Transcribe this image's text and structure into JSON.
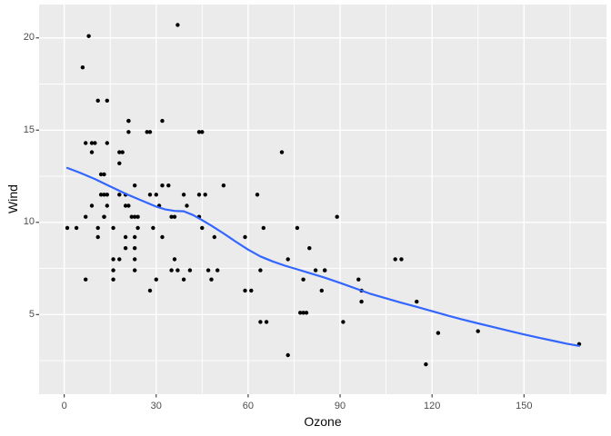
{
  "chart_data": {
    "type": "scatter",
    "title": "",
    "xlabel": "Ozone",
    "ylabel": "Wind",
    "xlim": [
      -8.2,
      176.9
    ],
    "ylim": [
      0.68,
      21.81
    ],
    "x_ticks": [
      0,
      30,
      60,
      90,
      120,
      150
    ],
    "x_tick_labels": [
      "0",
      "30",
      "60",
      "90",
      "120",
      "150"
    ],
    "x_minor_ticks": [
      15,
      45,
      75,
      105,
      135,
      165
    ],
    "y_ticks": [
      5,
      10,
      15,
      20
    ],
    "y_tick_labels": [
      "5",
      "10",
      "15",
      "20"
    ],
    "y_minor_ticks": [
      2.5,
      7.5,
      12.5,
      17.5
    ],
    "grid": {
      "major": true,
      "minor": true
    },
    "legend": "none",
    "series": [
      {
        "name": "points",
        "geom": "point"
      },
      {
        "name": "smooth",
        "geom": "loess-line"
      }
    ],
    "points": [
      [
        41,
        7.4
      ],
      [
        36,
        8
      ],
      [
        12,
        12.6
      ],
      [
        18,
        11.5
      ],
      [
        28,
        14.9
      ],
      [
        23,
        8.6
      ],
      [
        19,
        13.8
      ],
      [
        8,
        20.1
      ],
      [
        7,
        6.9
      ],
      [
        16,
        9.7
      ],
      [
        11,
        9.2
      ],
      [
        14,
        10.9
      ],
      [
        18,
        13.2
      ],
      [
        14,
        11.5
      ],
      [
        34,
        12
      ],
      [
        6,
        18.4
      ],
      [
        30,
        11.5
      ],
      [
        11,
        9.7
      ],
      [
        1,
        9.7
      ],
      [
        11,
        16.6
      ],
      [
        4,
        9.7
      ],
      [
        32,
        12
      ],
      [
        23,
        12
      ],
      [
        45,
        14.9
      ],
      [
        115,
        5.7
      ],
      [
        37,
        7.4
      ],
      [
        29,
        9.7
      ],
      [
        71,
        13.8
      ],
      [
        39,
        11.5
      ],
      [
        23,
        8
      ],
      [
        21,
        14.9
      ],
      [
        37,
        20.7
      ],
      [
        20,
        9.2
      ],
      [
        12,
        11.5
      ],
      [
        13,
        10.3
      ],
      [
        135,
        4.1
      ],
      [
        49,
        9.2
      ],
      [
        32,
        9.2
      ],
      [
        64,
        4.6
      ],
      [
        40,
        10.9
      ],
      [
        77,
        5.1
      ],
      [
        97,
        6.3
      ],
      [
        97,
        5.7
      ],
      [
        85,
        7.4
      ],
      [
        10,
        14.3
      ],
      [
        27,
        14.9
      ],
      [
        7,
        14.3
      ],
      [
        48,
        6.9
      ],
      [
        35,
        10.3
      ],
      [
        61,
        6.3
      ],
      [
        79,
        5.1
      ],
      [
        63,
        11.5
      ],
      [
        16,
        6.9
      ],
      [
        80,
        8.6
      ],
      [
        108,
        8
      ],
      [
        20,
        8.6
      ],
      [
        52,
        12
      ],
      [
        82,
        7.4
      ],
      [
        50,
        7.4
      ],
      [
        64,
        7.4
      ],
      [
        59,
        9.2
      ],
      [
        39,
        6.9
      ],
      [
        9,
        13.8
      ],
      [
        16,
        7.4
      ],
      [
        78,
        6.9
      ],
      [
        35,
        7.4
      ],
      [
        66,
        4.6
      ],
      [
        122,
        4
      ],
      [
        89,
        10.3
      ],
      [
        110,
        8
      ],
      [
        44,
        11.5
      ],
      [
        28,
        11.5
      ],
      [
        65,
        9.7
      ],
      [
        22,
        10.3
      ],
      [
        59,
        6.3
      ],
      [
        23,
        7.4
      ],
      [
        31,
        10.9
      ],
      [
        44,
        10.3
      ],
      [
        21,
        15.5
      ],
      [
        9,
        14.3
      ],
      [
        45,
        9.7
      ],
      [
        168,
        3.4
      ],
      [
        73,
        8
      ],
      [
        76,
        9.7
      ],
      [
        118,
        2.3
      ],
      [
        84,
        6.3
      ],
      [
        85,
        7.4
      ],
      [
        96,
        6.9
      ],
      [
        78,
        5.1
      ],
      [
        73,
        2.8
      ],
      [
        91,
        4.6
      ],
      [
        47,
        7.4
      ],
      [
        32,
        15.5
      ],
      [
        20,
        10.9
      ],
      [
        23,
        10.3
      ],
      [
        21,
        10.9
      ],
      [
        24,
        9.7
      ],
      [
        44,
        14.9
      ],
      [
        21,
        15.5
      ],
      [
        28,
        6.3
      ],
      [
        9,
        10.9
      ],
      [
        13,
        11.5
      ],
      [
        46,
        11.5
      ],
      [
        18,
        13.8
      ],
      [
        13,
        10.3
      ],
      [
        24,
        10.3
      ],
      [
        16,
        8
      ],
      [
        13,
        12.6
      ],
      [
        23,
        9.2
      ],
      [
        36,
        10.3
      ],
      [
        7,
        10.3
      ],
      [
        14,
        16.6
      ],
      [
        30,
        6.9
      ],
      [
        14,
        14.3
      ],
      [
        18,
        8
      ],
      [
        20,
        11.5
      ]
    ],
    "smooth_line": [
      [
        1,
        12.95
      ],
      [
        5,
        12.7
      ],
      [
        10,
        12.35
      ],
      [
        15,
        11.95
      ],
      [
        20,
        11.55
      ],
      [
        25,
        11.2
      ],
      [
        30,
        10.85
      ],
      [
        33,
        10.7
      ],
      [
        36,
        10.62
      ],
      [
        39,
        10.6
      ],
      [
        42,
        10.4
      ],
      [
        45,
        10.12
      ],
      [
        48,
        9.82
      ],
      [
        52,
        9.4
      ],
      [
        56,
        8.95
      ],
      [
        60,
        8.52
      ],
      [
        64,
        8.15
      ],
      [
        68,
        7.88
      ],
      [
        72,
        7.65
      ],
      [
        76,
        7.45
      ],
      [
        80,
        7.25
      ],
      [
        85,
        7.0
      ],
      [
        90,
        6.72
      ],
      [
        95,
        6.42
      ],
      [
        100,
        6.12
      ],
      [
        105,
        5.88
      ],
      [
        110,
        5.64
      ],
      [
        115,
        5.42
      ],
      [
        120,
        5.18
      ],
      [
        125,
        4.95
      ],
      [
        130,
        4.73
      ],
      [
        135,
        4.52
      ],
      [
        140,
        4.32
      ],
      [
        145,
        4.12
      ],
      [
        150,
        3.92
      ],
      [
        155,
        3.74
      ],
      [
        160,
        3.56
      ],
      [
        164,
        3.42
      ],
      [
        168,
        3.3
      ]
    ],
    "colors": {
      "point": "#000000",
      "smooth": "#3366FF",
      "panel_bg": "#EBEBEB",
      "grid": "#FFFFFF",
      "tick_text": "#4D4D4D",
      "tick_mark": "#333333",
      "axis_title": "#0A0A0A",
      "background": "#FFFFFF"
    }
  }
}
